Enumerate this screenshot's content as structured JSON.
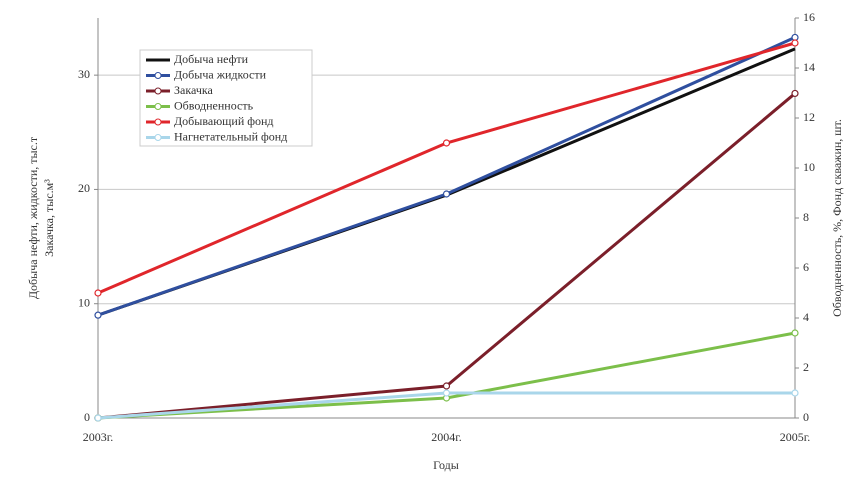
{
  "chart_data": {
    "type": "line",
    "x_label": "Годы",
    "y_label": [
      "Добыча нефти, жидкости, тыс.т",
      "Закачка, тыс.м³"
    ],
    "y2_label": "Обводненность, %, Фонд скважин, шт.",
    "categories": [
      "2003г.",
      "2004г.",
      "2005г."
    ],
    "ylim": [
      0,
      35
    ],
    "yticks": [
      0,
      10,
      20,
      30
    ],
    "y2lim": [
      0,
      16
    ],
    "y2ticks": [
      0,
      2,
      4,
      6,
      8,
      10,
      12,
      14,
      16
    ],
    "grid": true,
    "legend": "upper left",
    "series": [
      {
        "name": "Добыча нефти",
        "color": "#111111",
        "marker": false,
        "values": [
          9.0,
          19.5,
          32.3
        ]
      },
      {
        "name": "Добыча жидкости",
        "color": "#2f4f9f",
        "marker": true,
        "values": [
          9.0,
          19.6,
          33.3
        ]
      },
      {
        "name": "Закачка",
        "color": "#7b1f2a",
        "marker": true,
        "values": [
          0,
          2.8,
          28.4
        ]
      },
      {
        "name": "Обводненность",
        "color": "#7cbf4a",
        "marker": true,
        "axis": "y2",
        "values": [
          0,
          0.8,
          3.4
        ]
      },
      {
        "name": "Добывающий фонд",
        "color": "#e0262b",
        "marker": true,
        "axis": "y2",
        "values": [
          5,
          11,
          15
        ]
      },
      {
        "name": "Нагнетательный фонд",
        "color": "#a9d6ea",
        "marker": true,
        "axis": "y2",
        "values": [
          0,
          1,
          1
        ]
      }
    ]
  }
}
